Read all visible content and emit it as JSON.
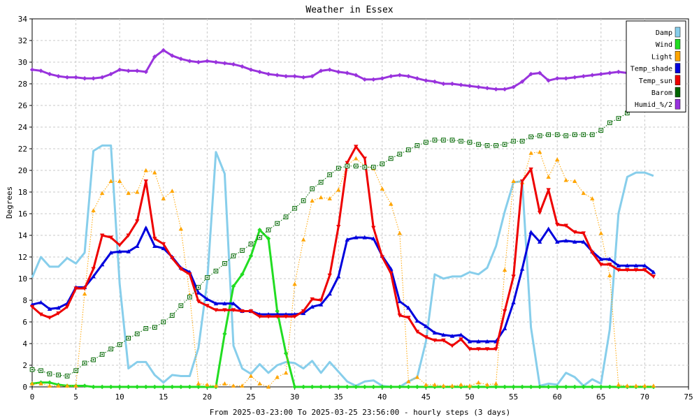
{
  "chart_data": {
    "type": "line",
    "title": "Weather in Essex",
    "xlabel": "From 2025-03-23:00 To 2025-03-25 23:56:00 - hourly steps (3 days)",
    "ylabel": "Degrees",
    "xlim": [
      0,
      75
    ],
    "ylim": [
      0,
      34
    ],
    "xticks": [
      0,
      5,
      10,
      15,
      20,
      25,
      30,
      35,
      40,
      45,
      50,
      55,
      60,
      65,
      70,
      75
    ],
    "yticks": [
      0,
      2,
      4,
      6,
      8,
      10,
      12,
      14,
      16,
      18,
      20,
      22,
      24,
      26,
      28,
      30,
      32,
      34
    ],
    "grid": true,
    "legend_position": "top-right",
    "x": [
      0,
      1,
      2,
      3,
      4,
      5,
      6,
      7,
      8,
      9,
      10,
      11,
      12,
      13,
      14,
      15,
      16,
      17,
      18,
      19,
      20,
      21,
      22,
      23,
      24,
      25,
      26,
      27,
      28,
      29,
      30,
      31,
      32,
      33,
      34,
      35,
      36,
      37,
      38,
      39,
      40,
      41,
      42,
      43,
      44,
      45,
      46,
      47,
      48,
      49,
      50,
      51,
      52,
      53,
      54,
      55,
      56,
      57,
      58,
      59,
      60,
      61,
      62,
      63,
      64,
      65,
      66,
      67,
      68,
      69,
      70,
      71
    ],
    "series": [
      {
        "name": "Damp",
        "color": "#87ceeb",
        "width": 3,
        "dotted": false,
        "marker": "none",
        "values": [
          10.1,
          12.0,
          11.1,
          11.1,
          11.9,
          11.4,
          12.4,
          21.8,
          22.3,
          22.3,
          9.5,
          1.7,
          2.3,
          2.3,
          1.1,
          0.4,
          1.1,
          1.0,
          1.0,
          3.6,
          9.7,
          21.7,
          19.7,
          3.8,
          1.7,
          1.2,
          2.1,
          1.3,
          2.0,
          2.3,
          2.2,
          1.7,
          2.4,
          1.3,
          2.3,
          1.4,
          0.5,
          0.1,
          0.5,
          0.6,
          0.1,
          0.0,
          0.0,
          0.5,
          0.9,
          4.2,
          10.4,
          10.0,
          10.2,
          10.2,
          10.6,
          10.4,
          11.0,
          13.0,
          16.2,
          18.9,
          19.0,
          5.5,
          0.1,
          0.3,
          0.2,
          1.3,
          0.9,
          0.1,
          0.7,
          0.3,
          5.3,
          16.0,
          19.4,
          19.8,
          19.8,
          19.5
        ]
      },
      {
        "name": "Wind",
        "color": "#22dd22",
        "width": 3,
        "dotted": false,
        "marker": "diamond",
        "values": [
          0.3,
          0.4,
          0.4,
          0.2,
          0.1,
          0.1,
          0.1,
          0,
          0,
          0,
          0,
          0,
          0,
          0,
          0,
          0,
          0,
          0,
          0,
          0,
          0,
          0,
          4.9,
          9.3,
          10.4,
          12.1,
          14.5,
          13.7,
          7.0,
          3.1,
          0,
          0,
          0,
          0,
          0,
          0,
          0,
          0,
          0,
          0,
          0,
          0,
          0,
          0,
          0,
          0,
          0,
          0,
          0,
          0,
          0,
          0,
          0,
          0,
          0,
          0,
          0,
          0,
          0,
          0,
          0,
          0,
          0,
          0,
          0,
          0,
          0,
          0,
          0,
          0,
          0,
          0
        ]
      },
      {
        "name": "Light",
        "color": "#ffa500",
        "width": 1,
        "dotted": true,
        "marker": "triangle-up",
        "values": [
          0.3,
          0.3,
          0.1,
          0.1,
          0.1,
          0.1,
          8.6,
          16.3,
          17.9,
          19.0,
          19.0,
          17.9,
          18.0,
          20.0,
          19.8,
          17.4,
          18.1,
          14.6,
          8.5,
          0.3,
          0.2,
          0.1,
          0.3,
          0.1,
          0.1,
          1.0,
          0.3,
          0.0,
          0.9,
          1.3,
          9.5,
          13.6,
          17.2,
          17.5,
          17.4,
          18.2,
          20.5,
          21.1,
          20.4,
          20.2,
          18.3,
          16.9,
          14.2,
          0.5,
          0.9,
          0.2,
          0.2,
          0.1,
          0.1,
          0.2,
          0.1,
          0.4,
          0.2,
          0.3,
          10.8,
          19.0,
          18.9,
          21.6,
          21.7,
          19.4,
          21.0,
          19.1,
          19.0,
          17.9,
          17.4,
          14.2,
          10.3,
          0.2,
          0.1,
          0.1,
          0.1,
          0.1
        ]
      },
      {
        "name": "Temp_shade",
        "color": "#0000dd",
        "width": 3,
        "dotted": false,
        "marker": "triangle-up",
        "values": [
          7.6,
          7.8,
          7.2,
          7.3,
          7.7,
          9.2,
          9.2,
          10.2,
          11.3,
          12.4,
          12.5,
          12.5,
          13.0,
          14.7,
          13.0,
          12.8,
          12.0,
          11.0,
          10.6,
          8.7,
          8.1,
          7.7,
          7.7,
          7.7,
          7.0,
          7.0,
          6.7,
          6.7,
          6.7,
          6.7,
          6.7,
          6.8,
          7.4,
          7.6,
          8.6,
          10.2,
          13.6,
          13.8,
          13.8,
          13.7,
          12.1,
          10.9,
          7.9,
          7.3,
          6.1,
          5.6,
          5.0,
          4.8,
          4.7,
          4.8,
          4.2,
          4.2,
          4.2,
          4.2,
          5.4,
          7.8,
          10.9,
          14.3,
          13.4,
          14.6,
          13.4,
          13.5,
          13.4,
          13.4,
          12.5,
          11.8,
          11.8,
          11.2,
          11.2,
          11.2,
          11.2,
          10.6
        ]
      },
      {
        "name": "Temp_sun",
        "color": "#ee0000",
        "width": 3,
        "dotted": false,
        "marker": "triangle-down",
        "values": [
          7.4,
          6.7,
          6.4,
          6.8,
          7.4,
          9.1,
          9.1,
          10.9,
          14.0,
          13.8,
          13.1,
          14.0,
          15.3,
          19.0,
          13.7,
          13.2,
          11.9,
          10.9,
          10.4,
          7.9,
          7.5,
          7.1,
          7.1,
          7.1,
          7.0,
          7.0,
          6.5,
          6.5,
          6.5,
          6.5,
          6.5,
          7.0,
          8.1,
          8.0,
          10.3,
          14.8,
          20.7,
          22.2,
          21.1,
          14.7,
          12.0,
          10.5,
          6.6,
          6.4,
          5.1,
          4.6,
          4.3,
          4.3,
          3.8,
          4.4,
          3.5,
          3.5,
          3.5,
          3.5,
          7.0,
          10.2,
          19.0,
          20.1,
          16.1,
          18.2,
          15.0,
          14.9,
          14.3,
          14.2,
          12.4,
          11.3,
          11.3,
          10.8,
          10.8,
          10.8,
          10.8,
          10.2
        ]
      },
      {
        "name": "Barom",
        "color": "#006600",
        "width": 1,
        "dotted": true,
        "marker": "square",
        "values": [
          1.6,
          1.5,
          1.2,
          1.1,
          1.0,
          1.5,
          2.2,
          2.5,
          3.0,
          3.5,
          3.9,
          4.5,
          4.9,
          5.4,
          5.5,
          6.0,
          6.6,
          7.5,
          8.3,
          9.2,
          10.1,
          10.7,
          11.4,
          12.1,
          12.6,
          13.2,
          13.8,
          14.5,
          15.1,
          15.7,
          16.5,
          17.2,
          18.3,
          18.9,
          19.6,
          20.2,
          20.4,
          20.4,
          20.3,
          20.3,
          20.6,
          21.1,
          21.5,
          21.9,
          22.3,
          22.6,
          22.8,
          22.8,
          22.8,
          22.7,
          22.6,
          22.4,
          22.3,
          22.3,
          22.4,
          22.7,
          22.7,
          23.1,
          23.2,
          23.3,
          23.3,
          23.2,
          23.3,
          23.3,
          23.3,
          23.7,
          24.4,
          24.8,
          25.3,
          25.7,
          26.0,
          26.2
        ]
      },
      {
        "name": "Humid_%/2",
        "color": "#9933dd",
        "width": 3,
        "dotted": false,
        "marker": "diamond",
        "values": [
          29.3,
          29.2,
          28.9,
          28.7,
          28.6,
          28.6,
          28.5,
          28.5,
          28.6,
          28.9,
          29.3,
          29.2,
          29.2,
          29.1,
          30.5,
          31.1,
          30.6,
          30.3,
          30.1,
          30.0,
          30.1,
          30.0,
          29.9,
          29.8,
          29.6,
          29.3,
          29.1,
          28.9,
          28.8,
          28.7,
          28.7,
          28.6,
          28.7,
          29.2,
          29.3,
          29.1,
          29.0,
          28.8,
          28.4,
          28.4,
          28.5,
          28.7,
          28.8,
          28.7,
          28.5,
          28.3,
          28.2,
          28.0,
          28.0,
          27.9,
          27.8,
          27.7,
          27.6,
          27.5,
          27.5,
          27.7,
          28.2,
          28.9,
          29.0,
          28.3,
          28.5,
          28.5,
          28.6,
          28.7,
          28.8,
          28.9,
          29.0,
          29.1,
          29.0,
          29.0,
          29.0,
          29.0
        ]
      }
    ]
  }
}
